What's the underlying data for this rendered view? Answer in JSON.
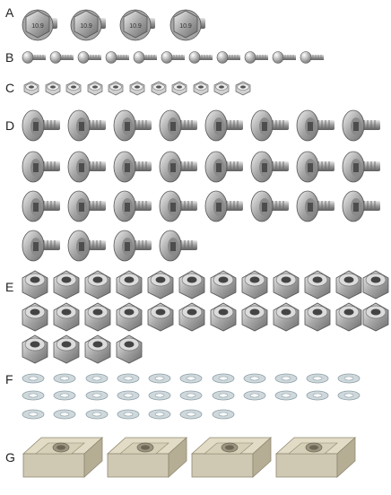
{
  "rows": [
    {
      "label": "A",
      "part": "flange-hex-bolt-icon",
      "count": 4,
      "head_marking": "10.9"
    },
    {
      "label": "B",
      "part": "button-head-screw-icon",
      "count": 11
    },
    {
      "label": "C",
      "part": "nylon-lock-nut-small-icon",
      "count": 11
    },
    {
      "label": "D",
      "part": "flat-head-bolt-icon",
      "count": 28
    },
    {
      "label": "E",
      "part": "nylon-lock-nut-large-icon",
      "count": 28
    },
    {
      "label": "F",
      "part": "flat-washer-icon",
      "count": 29
    },
    {
      "label": "G",
      "part": "t-slot-nut-icon",
      "count": 4
    }
  ],
  "colors": {
    "steel_light": "#d9d9d9",
    "steel_mid": "#a6a6a6",
    "steel_dark": "#6e6e6e",
    "washer": "#cfd8dc",
    "tslot": "#cfc9b4",
    "tslot_dark": "#8e8770"
  }
}
